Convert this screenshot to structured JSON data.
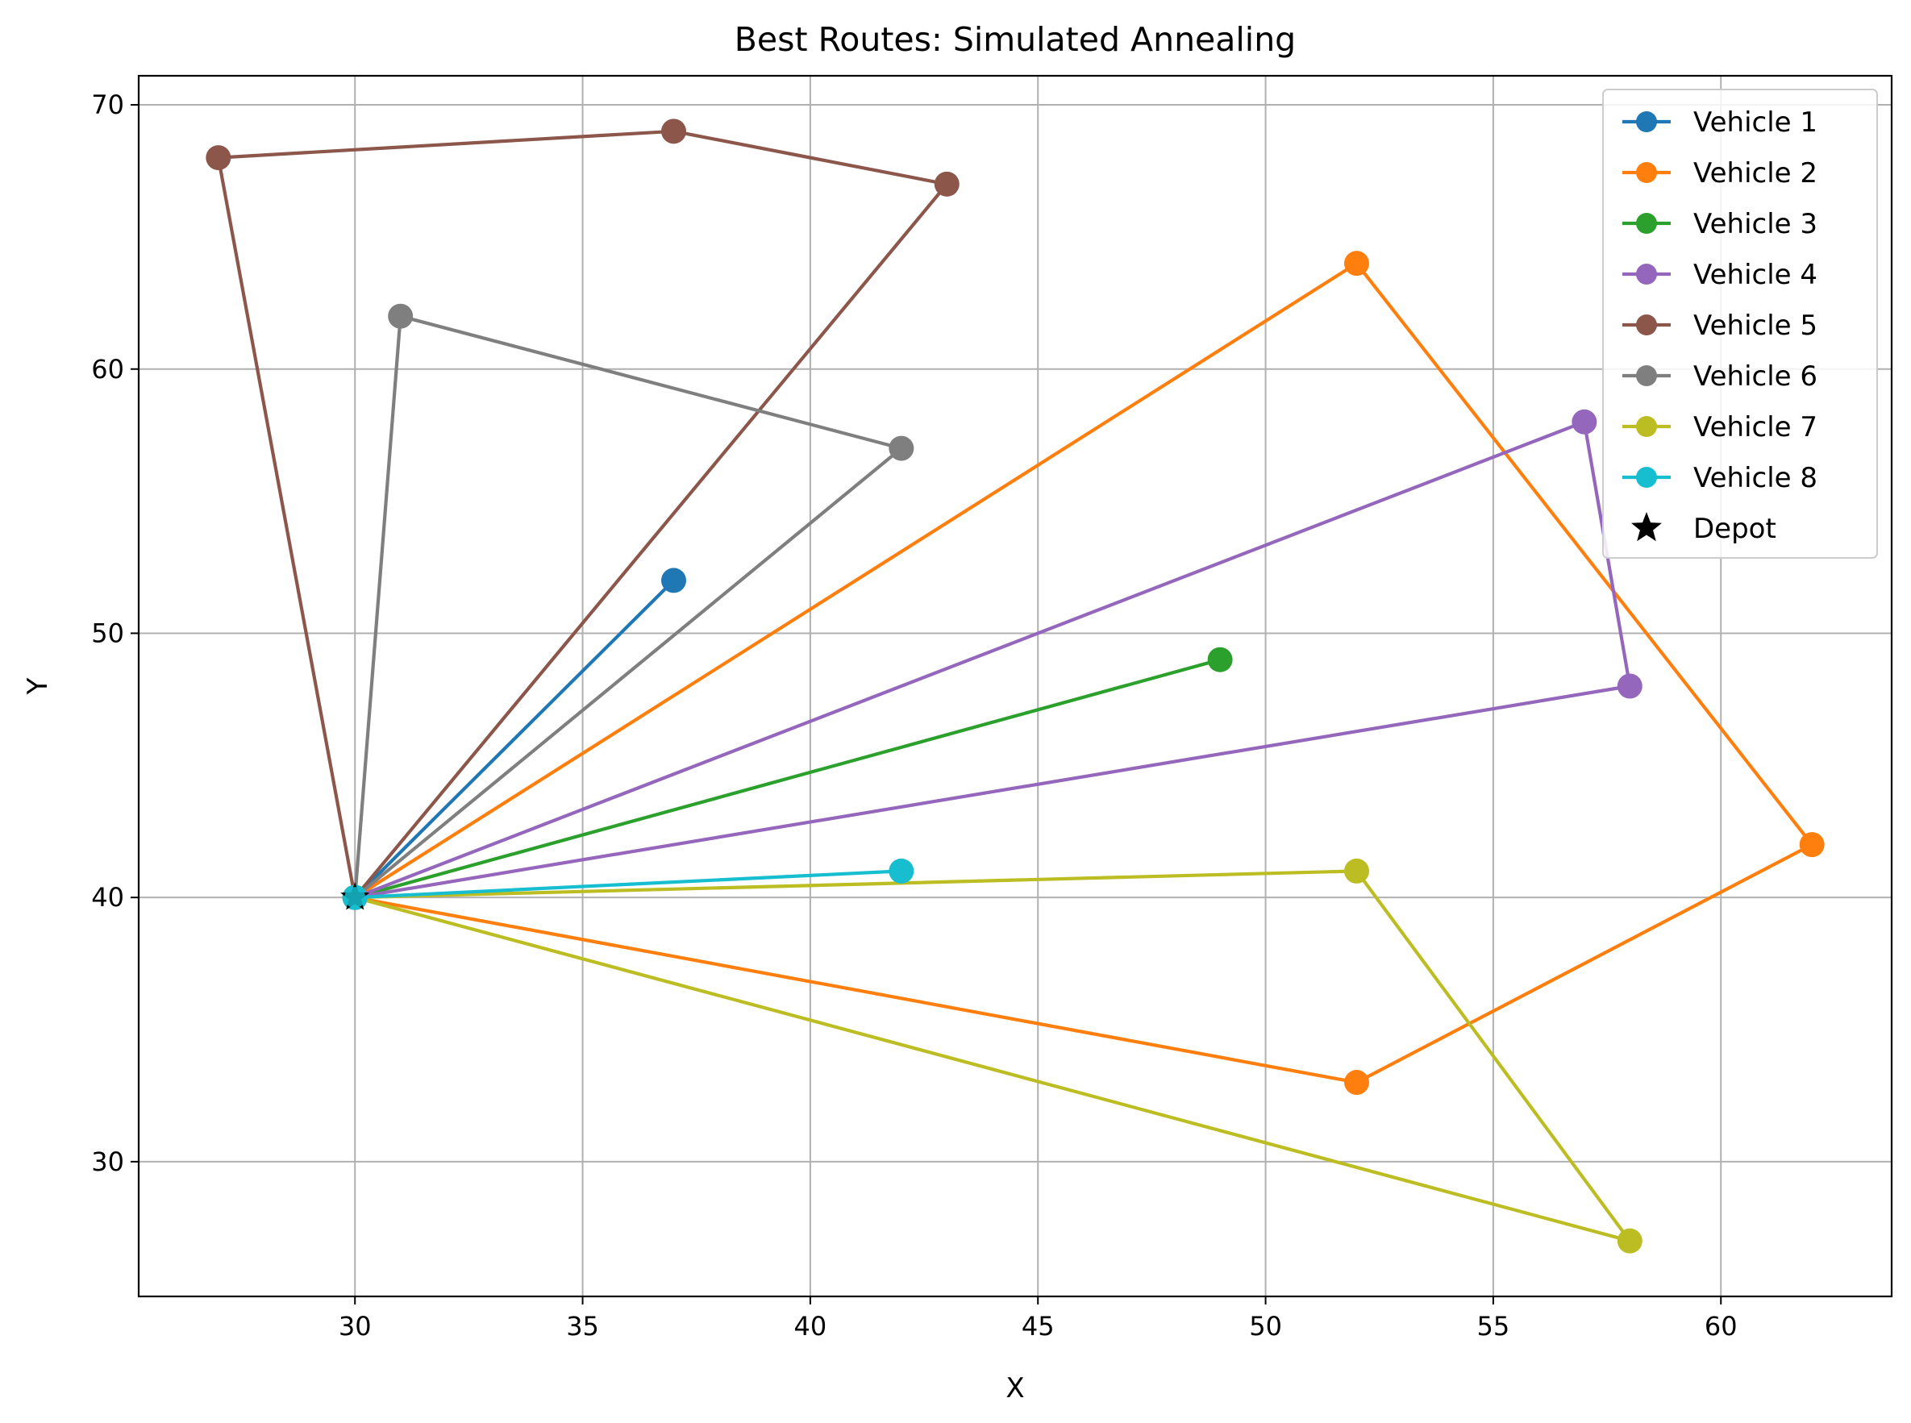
{
  "chart_data": {
    "type": "line",
    "title": "Best Routes: Simulated Annealing",
    "xlabel": "X",
    "ylabel": "Y",
    "xlim": [
      25.25,
      63.75
    ],
    "ylim": [
      24.9,
      71.1
    ],
    "xticks": [
      30,
      35,
      40,
      45,
      50,
      55,
      60
    ],
    "yticks": [
      30,
      40,
      50,
      60,
      70
    ],
    "grid": true,
    "legend_position": "top-right",
    "depot": {
      "name": "Depot",
      "x": 30,
      "y": 40,
      "color": "#000000",
      "marker": "star"
    },
    "series": [
      {
        "name": "Vehicle 1",
        "color": "#1f77b4",
        "points": [
          [
            30,
            40
          ],
          [
            37,
            52
          ],
          [
            30,
            40
          ]
        ]
      },
      {
        "name": "Vehicle 2",
        "color": "#ff7f0e",
        "points": [
          [
            30,
            40
          ],
          [
            52,
            33
          ],
          [
            62,
            42
          ],
          [
            52,
            64
          ],
          [
            30,
            40
          ]
        ]
      },
      {
        "name": "Vehicle 3",
        "color": "#2ca02c",
        "points": [
          [
            30,
            40
          ],
          [
            49,
            49
          ],
          [
            30,
            40
          ]
        ]
      },
      {
        "name": "Vehicle 4",
        "color": "#9467bd",
        "points": [
          [
            30,
            40
          ],
          [
            58,
            48
          ],
          [
            57,
            58
          ],
          [
            30,
            40
          ]
        ]
      },
      {
        "name": "Vehicle 5",
        "color": "#8c564b",
        "points": [
          [
            30,
            40
          ],
          [
            27,
            68
          ],
          [
            37,
            69
          ],
          [
            43,
            67
          ],
          [
            30,
            40
          ]
        ]
      },
      {
        "name": "Vehicle 6",
        "color": "#7f7f7f",
        "points": [
          [
            30,
            40
          ],
          [
            31,
            62
          ],
          [
            42,
            57
          ],
          [
            30,
            40
          ]
        ]
      },
      {
        "name": "Vehicle 7",
        "color": "#bcbd22",
        "points": [
          [
            30,
            40
          ],
          [
            58,
            27
          ],
          [
            52,
            41
          ],
          [
            30,
            40
          ]
        ]
      },
      {
        "name": "Vehicle 8",
        "color": "#17becf",
        "points": [
          [
            30,
            40
          ],
          [
            42,
            41
          ],
          [
            30,
            40
          ]
        ]
      }
    ]
  }
}
